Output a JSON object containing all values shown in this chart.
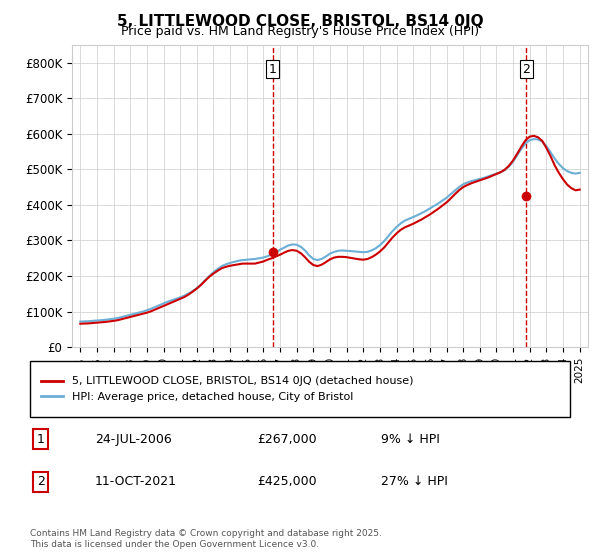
{
  "title": "5, LITTLEWOOD CLOSE, BRISTOL, BS14 0JQ",
  "subtitle": "Price paid vs. HM Land Registry's House Price Index (HPI)",
  "legend_entries": [
    "5, LITTLEWOOD CLOSE, BRISTOL, BS14 0JQ (detached house)",
    "HPI: Average price, detached house, City of Bristol"
  ],
  "transaction1": {
    "label": "1",
    "date": "24-JUL-2006",
    "price": "£267,000",
    "note": "9% ↓ HPI"
  },
  "transaction2": {
    "label": "2",
    "date": "11-OCT-2021",
    "price": "£425,000",
    "note": "27% ↓ HPI"
  },
  "footnote": "Contains HM Land Registry data © Crown copyright and database right 2025.\nThis data is licensed under the Open Government Licence v3.0.",
  "hpi_color": "#6baed6",
  "price_color": "#cc0000",
  "marker1_x": 2006.56,
  "marker1_y": 267000,
  "marker2_x": 2021.78,
  "marker2_y": 425000,
  "vline1_x": 2006.56,
  "vline2_x": 2021.78,
  "ylim": [
    0,
    850000
  ],
  "yticks": [
    0,
    100000,
    200000,
    300000,
    400000,
    500000,
    600000,
    700000,
    800000
  ],
  "ytick_labels": [
    "£0",
    "£100K",
    "£200K",
    "£300K",
    "£400K",
    "£500K",
    "£600K",
    "£700K",
    "£800K"
  ],
  "xlim_start": 1994.5,
  "xlim_end": 2025.5,
  "xticks": [
    1995,
    1996,
    1997,
    1998,
    1999,
    2000,
    2001,
    2002,
    2003,
    2004,
    2005,
    2006,
    2007,
    2008,
    2009,
    2010,
    2011,
    2012,
    2013,
    2014,
    2015,
    2016,
    2017,
    2018,
    2019,
    2020,
    2021,
    2022,
    2023,
    2024,
    2025
  ],
  "hpi_data": {
    "years": [
      1995,
      1995.25,
      1995.5,
      1995.75,
      1996,
      1996.25,
      1996.5,
      1996.75,
      1997,
      1997.25,
      1997.5,
      1997.75,
      1998,
      1998.25,
      1998.5,
      1998.75,
      1999,
      1999.25,
      1999.5,
      1999.75,
      2000,
      2000.25,
      2000.5,
      2000.75,
      2001,
      2001.25,
      2001.5,
      2001.75,
      2002,
      2002.25,
      2002.5,
      2002.75,
      2003,
      2003.25,
      2003.5,
      2003.75,
      2004,
      2004.25,
      2004.5,
      2004.75,
      2005,
      2005.25,
      2005.5,
      2005.75,
      2006,
      2006.25,
      2006.5,
      2006.75,
      2007,
      2007.25,
      2007.5,
      2007.75,
      2008,
      2008.25,
      2008.5,
      2008.75,
      2009,
      2009.25,
      2009.5,
      2009.75,
      2010,
      2010.25,
      2010.5,
      2010.75,
      2011,
      2011.25,
      2011.5,
      2011.75,
      2012,
      2012.25,
      2012.5,
      2012.75,
      2013,
      2013.25,
      2013.5,
      2013.75,
      2014,
      2014.25,
      2014.5,
      2014.75,
      2015,
      2015.25,
      2015.5,
      2015.75,
      2016,
      2016.25,
      2016.5,
      2016.75,
      2017,
      2017.25,
      2017.5,
      2017.75,
      2018,
      2018.25,
      2018.5,
      2018.75,
      2019,
      2019.25,
      2019.5,
      2019.75,
      2020,
      2020.25,
      2020.5,
      2020.75,
      2021,
      2021.25,
      2021.5,
      2021.75,
      2022,
      2022.25,
      2022.5,
      2022.75,
      2023,
      2023.25,
      2023.5,
      2023.75,
      2024,
      2024.25,
      2024.5,
      2024.75,
      2025
    ],
    "values": [
      72000,
      72500,
      73000,
      74000,
      75000,
      76000,
      77000,
      78500,
      80000,
      82000,
      85000,
      88000,
      91000,
      94000,
      97000,
      100000,
      104000,
      108000,
      113000,
      118000,
      123000,
      128000,
      132000,
      136000,
      140000,
      145000,
      151000,
      158000,
      166000,
      176000,
      188000,
      200000,
      211000,
      220000,
      228000,
      233000,
      237000,
      240000,
      243000,
      245000,
      246000,
      247000,
      248000,
      250000,
      252000,
      256000,
      261000,
      267000,
      274000,
      280000,
      286000,
      289000,
      288000,
      282000,
      272000,
      258000,
      248000,
      245000,
      248000,
      255000,
      263000,
      268000,
      271000,
      272000,
      271000,
      270000,
      269000,
      268000,
      267000,
      268000,
      272000,
      278000,
      287000,
      298000,
      312000,
      326000,
      338000,
      348000,
      356000,
      361000,
      366000,
      371000,
      377000,
      383000,
      390000,
      397000,
      404000,
      412000,
      420000,
      430000,
      440000,
      450000,
      458000,
      463000,
      467000,
      470000,
      473000,
      476000,
      480000,
      484000,
      488000,
      492000,
      498000,
      508000,
      522000,
      540000,
      558000,
      573000,
      582000,
      585000,
      584000,
      578000,
      565000,
      548000,
      530000,
      515000,
      503000,
      495000,
      490000,
      488000,
      490000
    ]
  },
  "price_data": {
    "years": [
      1995,
      1995.25,
      1995.5,
      1995.75,
      1996,
      1996.25,
      1996.5,
      1996.75,
      1997,
      1997.25,
      1997.5,
      1997.75,
      1998,
      1998.25,
      1998.5,
      1998.75,
      1999,
      1999.25,
      1999.5,
      1999.75,
      2000,
      2000.25,
      2000.5,
      2000.75,
      2001,
      2001.25,
      2001.5,
      2001.75,
      2002,
      2002.25,
      2002.5,
      2002.75,
      2003,
      2003.25,
      2003.5,
      2003.75,
      2004,
      2004.25,
      2004.5,
      2004.75,
      2005,
      2005.25,
      2005.5,
      2005.75,
      2006,
      2006.25,
      2006.5,
      2006.75,
      2007,
      2007.25,
      2007.5,
      2007.75,
      2008,
      2008.25,
      2008.5,
      2008.75,
      2009,
      2009.25,
      2009.5,
      2009.75,
      2010,
      2010.25,
      2010.5,
      2010.75,
      2011,
      2011.25,
      2011.5,
      2011.75,
      2012,
      2012.25,
      2012.5,
      2012.75,
      2013,
      2013.25,
      2013.5,
      2013.75,
      2014,
      2014.25,
      2014.5,
      2014.75,
      2015,
      2015.25,
      2015.5,
      2015.75,
      2016,
      2016.25,
      2016.5,
      2016.75,
      2017,
      2017.25,
      2017.5,
      2017.75,
      2018,
      2018.25,
      2018.5,
      2018.75,
      2019,
      2019.25,
      2019.5,
      2019.75,
      2020,
      2020.25,
      2020.5,
      2020.75,
      2021,
      2021.25,
      2021.5,
      2021.75,
      2022,
      2022.25,
      2022.5,
      2022.75,
      2023,
      2023.25,
      2023.5,
      2023.75,
      2024,
      2024.25,
      2024.5,
      2024.75,
      2025
    ],
    "values": [
      66000,
      66500,
      67000,
      68000,
      69000,
      70000,
      71000,
      72500,
      74000,
      76000,
      79000,
      82000,
      85000,
      88000,
      91000,
      94000,
      97000,
      101000,
      106000,
      111000,
      116000,
      121000,
      126000,
      131000,
      136000,
      141000,
      148000,
      156000,
      165000,
      175000,
      187000,
      198000,
      207000,
      215000,
      222000,
      226000,
      229000,
      231000,
      233000,
      235000,
      235000,
      235000,
      235000,
      238000,
      241000,
      246000,
      250000,
      255000,
      260000,
      266000,
      271000,
      273000,
      271000,
      264000,
      253000,
      240000,
      231000,
      228000,
      232000,
      239000,
      247000,
      252000,
      254000,
      254000,
      253000,
      251000,
      249000,
      247000,
      246000,
      248000,
      253000,
      260000,
      269000,
      280000,
      294000,
      308000,
      320000,
      330000,
      337000,
      342000,
      347000,
      353000,
      359000,
      366000,
      373000,
      381000,
      389000,
      398000,
      407000,
      418000,
      430000,
      441000,
      450000,
      456000,
      461000,
      465000,
      469000,
      473000,
      477000,
      482000,
      487000,
      492000,
      499000,
      510000,
      525000,
      544000,
      564000,
      582000,
      592000,
      594000,
      590000,
      580000,
      560000,
      537000,
      511000,
      490000,
      472000,
      457000,
      447000,
      441000,
      443000
    ]
  }
}
